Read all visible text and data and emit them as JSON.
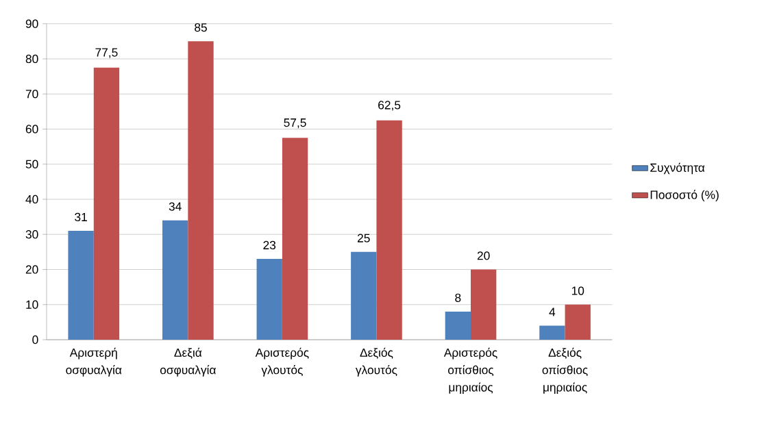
{
  "chart_data": {
    "type": "bar",
    "categories": [
      "Αριστερή οσφυαλγία",
      "Δεξιά οσφυαλγία",
      "Αριστερός γλουτός",
      "Δεξιός γλουτός",
      "Αριστερός οπίσθιος μηριαίος",
      "Δεξιός οπίσθιος μηριαίος"
    ],
    "series": [
      {
        "name": "Συχνότητα",
        "color": "#4f81bd",
        "values": [
          31,
          34,
          23,
          25,
          8,
          4
        ],
        "value_labels": [
          "31",
          "34",
          "23",
          "25",
          "8",
          "4"
        ]
      },
      {
        "name": "Ποσοστό (%)",
        "color": "#c0504d",
        "values": [
          77.5,
          85,
          57.5,
          62.5,
          20,
          10
        ],
        "value_labels": [
          "77,5",
          "85",
          "57,5",
          "62,5",
          "20",
          "10"
        ]
      }
    ],
    "ylim": [
      0,
      90
    ],
    "yticks": [
      0,
      10,
      20,
      30,
      40,
      50,
      60,
      70,
      80,
      90
    ],
    "grid": "y",
    "legend": "right"
  }
}
